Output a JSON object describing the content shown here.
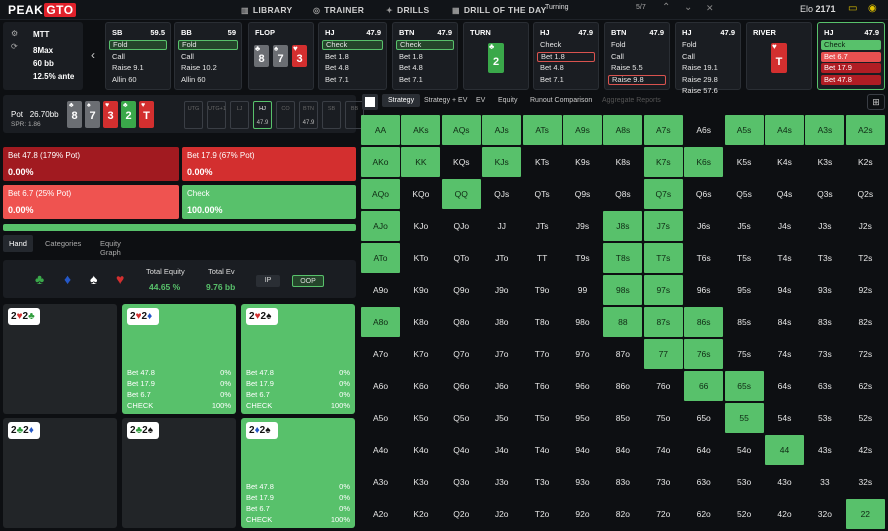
{
  "nav": {
    "logo_a": "PEAK",
    "logo_b": "GTO",
    "links": [
      {
        "icon": "library-icon",
        "glyph": "▥",
        "label": "LIBRARY"
      },
      {
        "icon": "trainer-icon",
        "glyph": "◎",
        "label": "TRAINER"
      },
      {
        "icon": "drills-icon",
        "glyph": "✦",
        "label": "DRILLS"
      },
      {
        "icon": "calendar-icon",
        "glyph": "▦",
        "label": "DRILL OF THE DAY"
      }
    ],
    "mode": "Turning",
    "page": "5/7",
    "elo_label": "Elo",
    "elo_value": "2171"
  },
  "info": {
    "format": "MTT",
    "players": "8Max",
    "stack": "60 bb",
    "ante": "12.5% ante"
  },
  "action_columns": [
    {
      "pos": "SB",
      "stack": "59.5",
      "options": [
        {
          "label": "Fold",
          "state": "sel"
        },
        {
          "label": "Call",
          "state": ""
        },
        {
          "label": "Raise 9.1",
          "state": ""
        },
        {
          "label": "Allin 60",
          "state": ""
        }
      ]
    },
    {
      "pos": "BB",
      "stack": "59",
      "options": [
        {
          "label": "Fold",
          "state": "sel"
        },
        {
          "label": "Call",
          "state": ""
        },
        {
          "label": "Raise 10.2",
          "state": ""
        },
        {
          "label": "Allin 60",
          "state": ""
        }
      ]
    },
    {
      "pos": "FLOP",
      "cards": [
        {
          "rank": "8",
          "suit": "♣",
          "color": "gray"
        },
        {
          "rank": "7",
          "suit": "♠",
          "color": "gray"
        },
        {
          "rank": "3",
          "suit": "♥",
          "color": "red"
        }
      ]
    },
    {
      "pos": "HJ",
      "stack": "47.9",
      "options": [
        {
          "label": "Check",
          "state": "sel"
        },
        {
          "label": "Bet 1.8",
          "state": ""
        },
        {
          "label": "Bet 4.8",
          "state": ""
        },
        {
          "label": "Bet 7.1",
          "state": ""
        }
      ]
    },
    {
      "pos": "BTN",
      "stack": "47.9",
      "options": [
        {
          "label": "Check",
          "state": "sel"
        },
        {
          "label": "Bet 1.8",
          "state": ""
        },
        {
          "label": "Bet 4.8",
          "state": ""
        },
        {
          "label": "Bet 7.1",
          "state": ""
        }
      ]
    },
    {
      "pos": "TURN",
      "cards": [
        {
          "rank": "2",
          "suit": "♣",
          "color": "green"
        }
      ]
    },
    {
      "pos": "HJ",
      "stack": "47.9",
      "options": [
        {
          "label": "Check",
          "state": ""
        },
        {
          "label": "Bet 1.8",
          "state": "selr"
        },
        {
          "label": "Bet 4.8",
          "state": ""
        },
        {
          "label": "Bet 7.1",
          "state": ""
        }
      ]
    },
    {
      "pos": "BTN",
      "stack": "47.9",
      "options": [
        {
          "label": "Fold",
          "state": ""
        },
        {
          "label": "Call",
          "state": ""
        },
        {
          "label": "Raise 5.5",
          "state": ""
        },
        {
          "label": "Raise 9.8",
          "state": "selr"
        }
      ]
    },
    {
      "pos": "HJ",
      "stack": "47.9",
      "options": [
        {
          "label": "Fold",
          "state": ""
        },
        {
          "label": "Call",
          "state": ""
        },
        {
          "label": "Raise 19.1",
          "state": ""
        },
        {
          "label": "Raise 29.8",
          "state": ""
        },
        {
          "label": "Raise 57.6",
          "state": ""
        }
      ]
    },
    {
      "pos": "RIVER",
      "cards": [
        {
          "rank": "T",
          "suit": "♥",
          "color": "red"
        }
      ]
    },
    {
      "pos": "HJ",
      "stack": "47.9",
      "options": [
        {
          "label": "Check",
          "state": "g"
        },
        {
          "label": "Bet 6.7",
          "state": "r1"
        },
        {
          "label": "Bet 17.9",
          "state": "r2"
        },
        {
          "label": "Bet 47.8",
          "state": "r2"
        }
      ]
    }
  ],
  "pot": {
    "label": "Pot",
    "value": "26.70bb",
    "spr": "SPR: 1.86",
    "board": [
      {
        "rank": "8",
        "suit": "♣",
        "color": "gray"
      },
      {
        "rank": "7",
        "suit": "♠",
        "color": "gray"
      },
      {
        "rank": "3",
        "suit": "♥",
        "color": "red"
      },
      {
        "rank": "2",
        "suit": "♣",
        "color": "green"
      },
      {
        "rank": "T",
        "suit": "♥",
        "color": "red"
      }
    ],
    "seats": [
      {
        "name": "UTG",
        "val": ""
      },
      {
        "name": "UTG+1",
        "val": ""
      },
      {
        "name": "LJ",
        "val": ""
      },
      {
        "name": "HJ",
        "val": "47.9"
      },
      {
        "name": "CO",
        "val": ""
      },
      {
        "name": "BTN",
        "val": "47.9"
      },
      {
        "name": "SB",
        "val": ""
      },
      {
        "name": "BB",
        "val": ""
      }
    ]
  },
  "actions": [
    {
      "label": "Bet 47.8 (179% Pot)",
      "pct": "0.00%",
      "color": "#a11a20"
    },
    {
      "label": "Bet 17.9 (67% Pot)",
      "pct": "0.00%",
      "color": "#d32f2f"
    },
    {
      "label": "Bet 6.7 (25% Pot)",
      "pct": "0.00%",
      "color": "#ef5350"
    },
    {
      "label": "Check",
      "pct": "100.00%",
      "color": "#58c16b"
    }
  ],
  "tabs": {
    "hand": "Hand",
    "categories": "Categories",
    "equity_graph": "Equity Graph"
  },
  "equity": {
    "total_equity_label": "Total Equity",
    "total_equity": "44.65 %",
    "total_ev_label": "Total Ev",
    "total_ev": "9.76 bb",
    "ip": "IP",
    "oop": "OOP"
  },
  "combos": [
    {
      "cards": [
        [
          "2",
          "♥",
          "r"
        ],
        [
          "2",
          "♣",
          "gr"
        ]
      ],
      "green": false,
      "rows": []
    },
    {
      "cards": [
        [
          "2",
          "♥",
          "r"
        ],
        [
          "2",
          "♦",
          "b"
        ]
      ],
      "green": true,
      "rows": [
        [
          "Bet 47.8",
          "0%"
        ],
        [
          "Bet 17.9",
          "0%"
        ],
        [
          "Bet 6.7",
          "0%"
        ],
        [
          "CHECK",
          "100%"
        ]
      ]
    },
    {
      "cards": [
        [
          "2",
          "♥",
          "r"
        ],
        [
          "2",
          "♠",
          "k"
        ]
      ],
      "green": true,
      "rows": [
        [
          "Bet 47.8",
          "0%"
        ],
        [
          "Bet 17.9",
          "0%"
        ],
        [
          "Bet 6.7",
          "0%"
        ],
        [
          "CHECK",
          "100%"
        ]
      ]
    },
    {
      "cards": [
        [
          "2",
          "♣",
          "gr"
        ],
        [
          "2",
          "♦",
          "b"
        ]
      ],
      "green": false,
      "rows": []
    },
    {
      "cards": [
        [
          "2",
          "♣",
          "gr"
        ],
        [
          "2",
          "♠",
          "k"
        ]
      ],
      "green": false,
      "rows": []
    },
    {
      "cards": [
        [
          "2",
          "♦",
          "b"
        ],
        [
          "2",
          "♠",
          "k"
        ]
      ],
      "green": true,
      "rows": [
        [
          "Bet 47.8",
          "0%"
        ],
        [
          "Bet 17.9",
          "0%"
        ],
        [
          "Bet 6.7",
          "0%"
        ],
        [
          "CHECK",
          "100%"
        ]
      ]
    }
  ],
  "strategy_tabs": [
    {
      "label": "Strategy",
      "state": "on"
    },
    {
      "label": "Strategy + EV",
      "state": ""
    },
    {
      "label": "EV",
      "state": ""
    },
    {
      "label": "Equity",
      "state": ""
    },
    {
      "label": "Runout Comparison",
      "state": ""
    },
    {
      "label": "Aggregate Reports",
      "state": "dis"
    }
  ],
  "ranks": [
    "A",
    "K",
    "Q",
    "J",
    "T",
    "9",
    "8",
    "7",
    "6",
    "5",
    "4",
    "3",
    "2"
  ],
  "green_cells": [
    "AA",
    "AKs",
    "AQs",
    "AJs",
    "ATs",
    "A9s",
    "A8s",
    "A7s",
    "A5s",
    "A4s",
    "A3s",
    "A2s",
    "AKo",
    "KK",
    "KJs",
    "K7s",
    "K6s",
    "AQo",
    "QQ",
    "Q7s",
    "AJo",
    "J8s",
    "J7s",
    "ATo",
    "T8s",
    "T7s",
    "98s",
    "97s",
    "A8o",
    "88",
    "87s",
    "86s",
    "77",
    "76s",
    "66",
    "65s",
    "55",
    "44",
    "22"
  ]
}
